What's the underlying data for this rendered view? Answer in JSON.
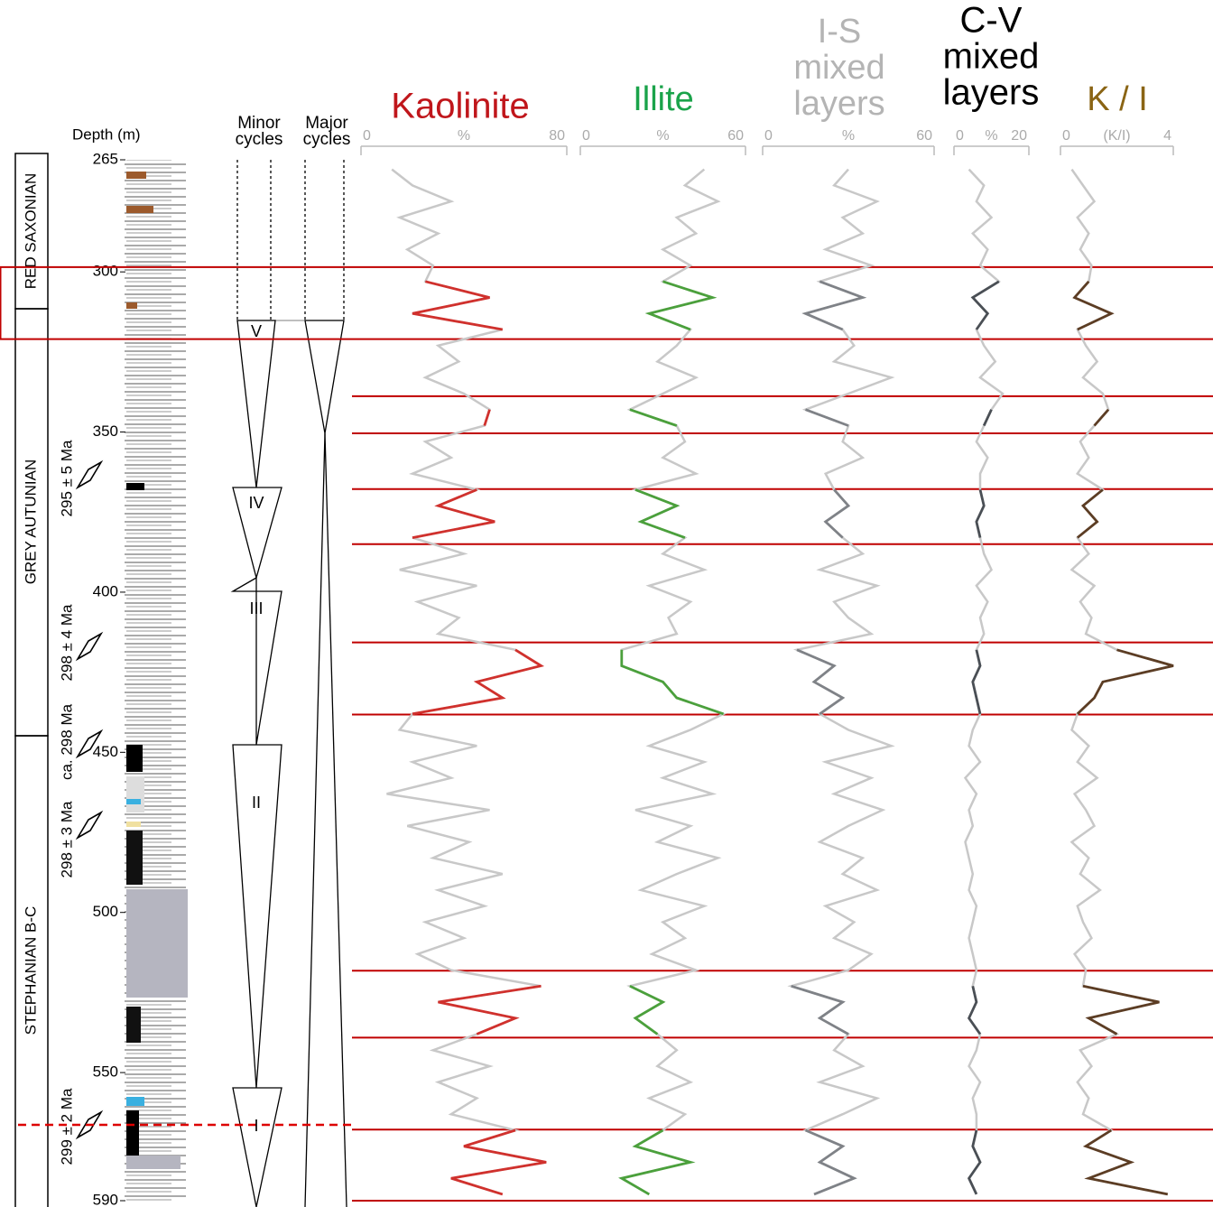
{
  "depth_axis": {
    "label": "Depth (m)",
    "ylim": [
      265,
      590
    ],
    "yticks": [
      265,
      300,
      350,
      400,
      450,
      500,
      550,
      590
    ]
  },
  "units": [
    "RED SAXONIAN",
    "GREY AUTUNIAN",
    "STEPHANIAN B-C"
  ],
  "ages": [
    "295 ± 5 Ma",
    "298 ± 4 Ma",
    "ca. 298 Ma",
    "298 ± 3 Ma",
    "299 ± 2 Ma"
  ],
  "cycles": {
    "minor_header": [
      "Minor",
      "cycles"
    ],
    "major_header": [
      "Major",
      "cycles"
    ],
    "minor_labels": [
      "V",
      "IV",
      "III",
      "II",
      "I"
    ]
  },
  "highlight_intervals": [
    [
      298.5,
      321
    ],
    [
      338.8,
      350.4
    ],
    [
      367.8,
      385
    ],
    [
      415.7,
      438.2
    ],
    [
      518.2,
      539.1
    ],
    [
      567.8,
      590
    ]
  ],
  "base_color": "#c8c8c8",
  "sample_depths": [
    268,
    273,
    278,
    283,
    288,
    293,
    298,
    303,
    308,
    313,
    318,
    323,
    328,
    333,
    338,
    343,
    348,
    353,
    358,
    363,
    368,
    373,
    378,
    383,
    388,
    393,
    398,
    403,
    408,
    413,
    418,
    423,
    428,
    433,
    438,
    443,
    448,
    453,
    458,
    463,
    468,
    473,
    478,
    483,
    488,
    493,
    498,
    503,
    508,
    513,
    518,
    523,
    528,
    533,
    538,
    543,
    548,
    553,
    558,
    563,
    568,
    573,
    578,
    583,
    588
  ],
  "chart_data": [
    {
      "type": "line",
      "title": [
        "Kaolinite"
      ],
      "title_color": "#c0161b",
      "color": "#d0312d",
      "xlim": [
        0,
        80
      ],
      "xticks": [
        0,
        80
      ],
      "xlabel": "%",
      "values": [
        12,
        20,
        35,
        15,
        30,
        18,
        28,
        25,
        50,
        20,
        55,
        30,
        38,
        25,
        40,
        50,
        48,
        25,
        35,
        20,
        45,
        30,
        52,
        20,
        40,
        15,
        45,
        22,
        38,
        30,
        60,
        70,
        45,
        55,
        20,
        15,
        45,
        20,
        35,
        10,
        50,
        18,
        42,
        28,
        55,
        30,
        48,
        25,
        40,
        22,
        35,
        70,
        30,
        60,
        45,
        28,
        50,
        30,
        45,
        35,
        60,
        40,
        72,
        35,
        55
      ]
    },
    {
      "type": "line",
      "title": [
        "Illite"
      ],
      "title_color": "#1aa34a",
      "color": "#4ba03c",
      "xlim": [
        0,
        60
      ],
      "xticks": [
        0,
        60
      ],
      "xlabel": "%",
      "values": [
        45,
        38,
        50,
        35,
        42,
        30,
        40,
        30,
        48,
        25,
        40,
        35,
        28,
        42,
        30,
        18,
        35,
        38,
        30,
        42,
        20,
        35,
        22,
        38,
        30,
        45,
        25,
        40,
        32,
        35,
        15,
        15,
        30,
        35,
        52,
        40,
        25,
        45,
        30,
        48,
        20,
        40,
        28,
        50,
        35,
        22,
        45,
        30,
        38,
        26,
        42,
        18,
        30,
        20,
        28,
        35,
        28,
        40,
        25,
        38,
        30,
        20,
        40,
        15,
        25
      ]
    },
    {
      "type": "line",
      "title": [
        "I-S",
        "mixed",
        "layers"
      ],
      "title_color": "#b4b4b4",
      "color": "#7f8287",
      "xlim": [
        0,
        60
      ],
      "xticks": [
        0,
        60
      ],
      "xlabel": "%",
      "values": [
        30,
        25,
        40,
        28,
        35,
        22,
        38,
        20,
        35,
        15,
        28,
        32,
        25,
        45,
        30,
        15,
        30,
        28,
        35,
        22,
        25,
        30,
        22,
        28,
        35,
        20,
        40,
        25,
        30,
        38,
        12,
        25,
        18,
        28,
        20,
        30,
        45,
        22,
        38,
        25,
        42,
        30,
        20,
        35,
        28,
        40,
        22,
        32,
        25,
        38,
        30,
        10,
        28,
        20,
        30,
        25,
        35,
        20,
        40,
        28,
        15,
        28,
        20,
        32,
        18
      ]
    },
    {
      "type": "line",
      "title": [
        "C-V",
        "mixed",
        "layers"
      ],
      "title_color": "#000000",
      "color": "#4a4f55",
      "xlim": [
        0,
        20
      ],
      "xticks": [
        0,
        20
      ],
      "xlabel": "%",
      "values": [
        4,
        8,
        6,
        10,
        5,
        9,
        7,
        12,
        5,
        9,
        6,
        8,
        11,
        7,
        13,
        10,
        8,
        6,
        9,
        7,
        7,
        8,
        6,
        7,
        8,
        10,
        6,
        9,
        7,
        8,
        6,
        7,
        5,
        6,
        7,
        5,
        4,
        7,
        3,
        6,
        4,
        5,
        3,
        4,
        5,
        4,
        6,
        5,
        4,
        5,
        6,
        5,
        6,
        4,
        7,
        6,
        4,
        7,
        5,
        6,
        6,
        5,
        7,
        4,
        6
      ]
    },
    {
      "type": "line",
      "title": [
        "K / I"
      ],
      "title_color": "#8a6414",
      "color": "#5c3d24",
      "xlim": [
        0,
        4
      ],
      "xticks": [
        0,
        4
      ],
      "xlabel": "(K/I)",
      "values": [
        0.4,
        0.8,
        1.2,
        0.6,
        1.0,
        0.7,
        1.1,
        1.0,
        0.5,
        1.8,
        0.6,
        0.9,
        1.3,
        0.8,
        1.5,
        1.7,
        1.2,
        0.7,
        1.0,
        0.6,
        1.5,
        0.8,
        1.3,
        0.6,
        1.0,
        0.4,
        1.2,
        0.7,
        1.1,
        0.9,
        2.0,
        4.0,
        1.5,
        1.2,
        0.6,
        0.4,
        1.0,
        0.6,
        1.3,
        0.5,
        0.9,
        1.2,
        0.4,
        1.0,
        0.7,
        1.4,
        0.6,
        0.8,
        1.1,
        0.5,
        0.9,
        0.8,
        3.5,
        1.0,
        2.0,
        0.7,
        1.1,
        0.6,
        1.0,
        0.8,
        1.8,
        0.9,
        2.5,
        1.0,
        3.8
      ]
    }
  ]
}
